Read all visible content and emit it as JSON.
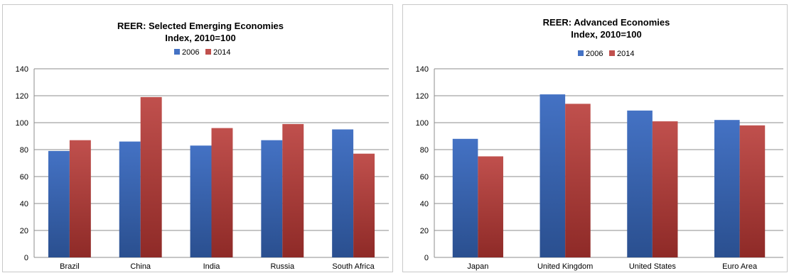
{
  "chart_data": [
    {
      "type": "bar",
      "title": "REER: Selected Emerging Economies",
      "subtitle": "Index, 2010=100",
      "categories": [
        "Brazil",
        "China",
        "India",
        "Russia",
        "South Africa"
      ],
      "series": [
        {
          "name": "2006",
          "values": [
            79,
            86,
            83,
            87,
            95
          ],
          "color": "#4472c4"
        },
        {
          "name": "2014",
          "values": [
            87,
            119,
            96,
            99,
            77
          ],
          "color": "#c0504d"
        }
      ],
      "ylim": [
        0,
        140
      ],
      "yticks": [
        0,
        20,
        40,
        60,
        80,
        100,
        120,
        140
      ],
      "grid": true,
      "legend": "top-center"
    },
    {
      "type": "bar",
      "title": "REER: Advanced Economies",
      "subtitle": "Index, 2010=100",
      "categories": [
        "Japan",
        "United Kingdom",
        "United States",
        "Euro Area"
      ],
      "series": [
        {
          "name": "2006",
          "values": [
            88,
            121,
            109,
            102
          ],
          "color": "#4472c4"
        },
        {
          "name": "2014",
          "values": [
            75,
            114,
            101,
            98
          ],
          "color": "#c0504d"
        }
      ],
      "ylim": [
        0,
        140
      ],
      "yticks": [
        0,
        20,
        40,
        60,
        80,
        100,
        120,
        140
      ],
      "grid": true,
      "legend": "top-center"
    }
  ]
}
